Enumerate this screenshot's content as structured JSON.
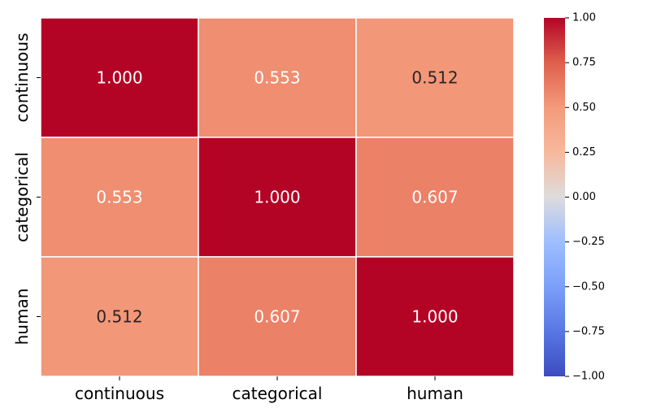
{
  "chart_data": {
    "type": "heatmap",
    "title": "",
    "xlabel": "",
    "ylabel": "",
    "x_categories": [
      "continuous",
      "categorical",
      "human"
    ],
    "y_categories": [
      "continuous",
      "categorical",
      "human"
    ],
    "values": [
      [
        1.0,
        0.553,
        0.512
      ],
      [
        0.553,
        1.0,
        0.607
      ],
      [
        0.512,
        0.607,
        1.0
      ]
    ],
    "value_labels": [
      [
        "1.000",
        "0.553",
        "0.512"
      ],
      [
        "0.553",
        "1.000",
        "0.607"
      ],
      [
        "0.512",
        "0.607",
        "1.000"
      ]
    ],
    "colormap": "coolwarm",
    "vmin": -1.0,
    "vmax": 1.0,
    "colorbar": {
      "ticks": [
        1.0,
        0.75,
        0.5,
        0.25,
        0.0,
        -0.25,
        -0.5,
        -0.75,
        -1.0
      ],
      "tick_labels": [
        "1.00",
        "0.75",
        "0.50",
        "0.25",
        "0.00",
        "−0.25",
        "−0.50",
        "−0.75",
        "−1.00"
      ]
    },
    "colors": {
      "high": "#b40426",
      "mid": "#dddcdc",
      "low": "#3b4cc0",
      "cell_border": "#ffffff",
      "text_light": "#ffffff",
      "text_dark": "#262626"
    }
  }
}
